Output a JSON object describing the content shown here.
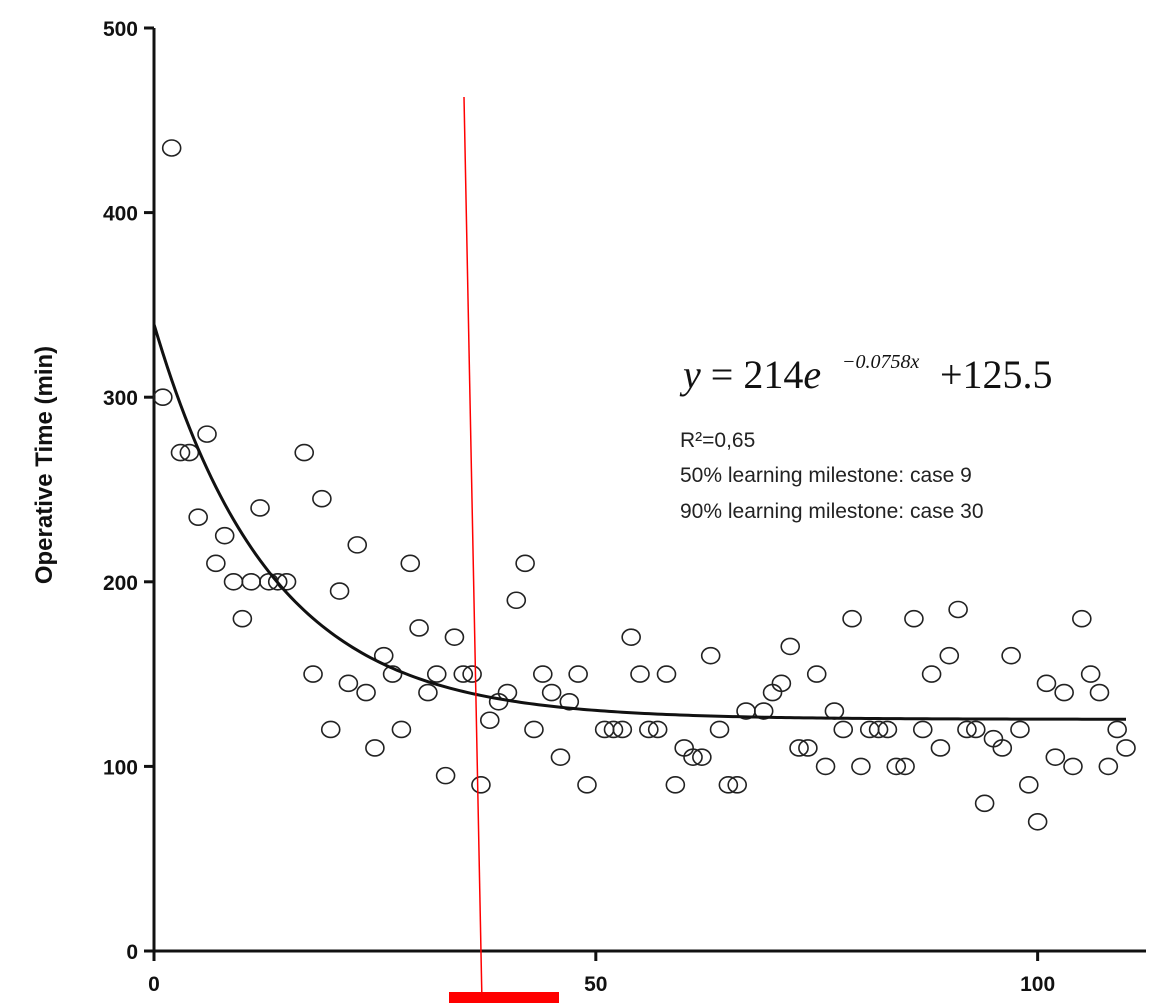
{
  "chart_data": {
    "type": "scatter",
    "title": "",
    "xlabel": "",
    "ylabel": "Operative Time (min)",
    "xlim": [
      0,
      110
    ],
    "ylim": [
      0,
      500
    ],
    "x_ticks": [
      "0",
      "50",
      "100"
    ],
    "y_ticks": [
      "0",
      "100",
      "200",
      "300",
      "400",
      "500"
    ],
    "grid": false,
    "legend": "none",
    "series": [
      {
        "marker": "open-circle",
        "points": [
          [
            1,
            300
          ],
          [
            2,
            435
          ],
          [
            3,
            270
          ],
          [
            4,
            270
          ],
          [
            5,
            235
          ],
          [
            6,
            280
          ],
          [
            7,
            210
          ],
          [
            8,
            225
          ],
          [
            9,
            200
          ],
          [
            10,
            180
          ],
          [
            11,
            200
          ],
          [
            12,
            240
          ],
          [
            13,
            200
          ],
          [
            14,
            200
          ],
          [
            15,
            200
          ],
          [
            17,
            270
          ],
          [
            18,
            150
          ],
          [
            19,
            245
          ],
          [
            20,
            120
          ],
          [
            21,
            195
          ],
          [
            22,
            145
          ],
          [
            23,
            220
          ],
          [
            24,
            140
          ],
          [
            25,
            110
          ],
          [
            26,
            160
          ],
          [
            27,
            150
          ],
          [
            28,
            120
          ],
          [
            29,
            210
          ],
          [
            30,
            175
          ],
          [
            31,
            140
          ],
          [
            32,
            150
          ],
          [
            33,
            95
          ],
          [
            34,
            170
          ],
          [
            35,
            150
          ],
          [
            36,
            150
          ],
          [
            37,
            90
          ],
          [
            38,
            125
          ],
          [
            39,
            135
          ],
          [
            40,
            140
          ],
          [
            41,
            190
          ],
          [
            42,
            210
          ],
          [
            43,
            120
          ],
          [
            44,
            150
          ],
          [
            45,
            140
          ],
          [
            46,
            105
          ],
          [
            47,
            135
          ],
          [
            48,
            150
          ],
          [
            49,
            90
          ],
          [
            51,
            120
          ],
          [
            52,
            120
          ],
          [
            53,
            120
          ],
          [
            54,
            170
          ],
          [
            55,
            150
          ],
          [
            56,
            120
          ],
          [
            57,
            120
          ],
          [
            58,
            150
          ],
          [
            59,
            90
          ],
          [
            60,
            110
          ],
          [
            61,
            105
          ],
          [
            62,
            105
          ],
          [
            63,
            160
          ],
          [
            64,
            120
          ],
          [
            65,
            90
          ],
          [
            66,
            90
          ],
          [
            67,
            130
          ],
          [
            69,
            130
          ],
          [
            70,
            140
          ],
          [
            71,
            145
          ],
          [
            72,
            165
          ],
          [
            73,
            110
          ],
          [
            74,
            110
          ],
          [
            75,
            150
          ],
          [
            76,
            100
          ],
          [
            77,
            130
          ],
          [
            78,
            120
          ],
          [
            79,
            180
          ],
          [
            80,
            100
          ],
          [
            81,
            120
          ],
          [
            82,
            120
          ],
          [
            83,
            120
          ],
          [
            84,
            100
          ],
          [
            85,
            100
          ],
          [
            86,
            180
          ],
          [
            87,
            120
          ],
          [
            88,
            150
          ],
          [
            89,
            110
          ],
          [
            90,
            160
          ],
          [
            91,
            185
          ],
          [
            92,
            120
          ],
          [
            93,
            120
          ],
          [
            94,
            80
          ],
          [
            95,
            115
          ],
          [
            96,
            110
          ],
          [
            97,
            160
          ],
          [
            98,
            120
          ],
          [
            99,
            90
          ],
          [
            100,
            70
          ],
          [
            101,
            145
          ],
          [
            102,
            105
          ],
          [
            103,
            140
          ],
          [
            104,
            100
          ],
          [
            105,
            180
          ],
          [
            106,
            150
          ],
          [
            107,
            140
          ],
          [
            108,
            100
          ],
          [
            109,
            120
          ],
          [
            110,
            110
          ]
        ]
      }
    ],
    "fit": {
      "type": "exponential-decay",
      "a": 214,
      "k": 0.0758,
      "c": 125.5,
      "x_range": [
        0,
        110
      ]
    },
    "annotations": {
      "equation_prefix": "y = 214e",
      "equation_exponent": "−0.0758x",
      "equation_suffix": "+125.5",
      "r_squared": "R²=0,65",
      "milestone_50": "50% learning milestone: case 9",
      "milestone_90": "90% learning milestone: case 30"
    },
    "overlay": {
      "red_line_color": "#ff0000",
      "red_marker_color": "#ff0000"
    }
  }
}
